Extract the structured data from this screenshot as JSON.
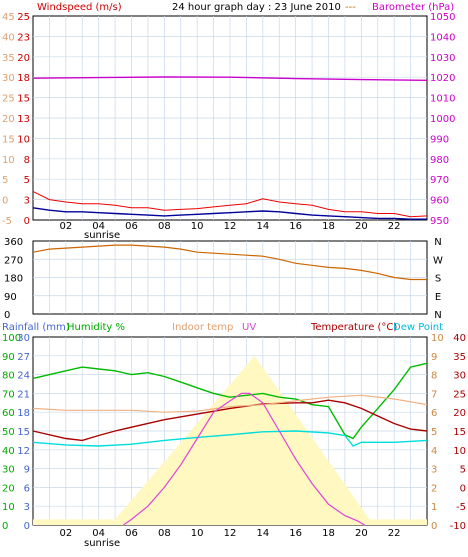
{
  "header": {
    "title": "24 hour graph day : 23 June 2010",
    "windspeed_label": "Windspeed (m/s)",
    "barometer_label": "Barometer (hPa)"
  },
  "labels": {
    "rainfall": "Rainfall (mm)",
    "humidity": "Humidity %",
    "indoor": "Indoor temp",
    "uv": "UV",
    "temperature": "Temperature (°C)",
    "dewpoint": "Dew Point",
    "sunrise": "sunrise"
  },
  "colors": {
    "wind_gust": "#ee0000",
    "wind_avg": "#000099",
    "barometer": "#cc00cc",
    "direction": "#cc6600",
    "humidity": "#00bb00",
    "temperature": "#aa0000",
    "dewpoint": "#00dddd",
    "indoor": "#f0b080",
    "uv": "#dd44dd",
    "solar": "#fff8c0",
    "grid": "#c8d8e8"
  },
  "chart_data": [
    {
      "type": "line",
      "x_ticks": [
        "02",
        "04",
        "06",
        "08",
        "10",
        "12",
        "14",
        "16",
        "18",
        "20",
        "22"
      ],
      "y_left_outer": [
        "45",
        "40",
        "35",
        "30",
        "25",
        "20",
        "15",
        "10",
        "5",
        "0",
        "-5"
      ],
      "y_left_inner": [
        "25",
        "23",
        "20",
        "18",
        "15",
        "13",
        "10",
        "8",
        "5",
        "3",
        "0"
      ],
      "y_right": [
        "1050",
        "1040",
        "1030",
        "1020",
        "1010",
        "1000",
        "990",
        "980",
        "970",
        "960",
        "950"
      ],
      "series": [
        {
          "key": "gust",
          "x": [
            0,
            1,
            2,
            3,
            4,
            5,
            6,
            7,
            8,
            9,
            10,
            11,
            12,
            13,
            14,
            15,
            16,
            17,
            18,
            19,
            20,
            21,
            22,
            23,
            24
          ],
          "y": [
            3.5,
            2.5,
            2.2,
            2.0,
            2.0,
            1.8,
            1.5,
            1.5,
            1.2,
            1.3,
            1.4,
            1.6,
            1.8,
            2.0,
            2.6,
            2.2,
            2.0,
            1.8,
            1.3,
            1.0,
            1.0,
            0.8,
            0.8,
            0.4,
            0.5
          ]
        },
        {
          "key": "avg",
          "x": [
            0,
            1,
            2,
            3,
            4,
            5,
            6,
            7,
            8,
            9,
            10,
            11,
            12,
            13,
            14,
            15,
            16,
            17,
            18,
            19,
            20,
            21,
            22,
            23,
            24
          ],
          "y": [
            1.5,
            1.2,
            1.0,
            1.0,
            0.9,
            0.8,
            0.7,
            0.6,
            0.5,
            0.6,
            0.7,
            0.8,
            0.9,
            1.0,
            1.1,
            1.0,
            0.8,
            0.6,
            0.5,
            0.4,
            0.3,
            0.2,
            0.2,
            0.1,
            0.1
          ]
        },
        {
          "key": "baro",
          "x": [
            0,
            4,
            8,
            12,
            16,
            20,
            24
          ],
          "y": [
            1019.5,
            1019.8,
            1020.1,
            1020.0,
            1019.3,
            1018.8,
            1018.5
          ]
        }
      ],
      "ylim_inner": [
        0,
        25
      ],
      "ylim_right": [
        950,
        1050
      ]
    },
    {
      "type": "line",
      "y_left": [
        "360",
        "270",
        "180",
        "90",
        "0"
      ],
      "y_right": [
        "N",
        "W",
        "S",
        "E",
        "N"
      ],
      "x": [
        0,
        1,
        2,
        3,
        4,
        5,
        6,
        7,
        8,
        9,
        10,
        11,
        12,
        13,
        14,
        15,
        16,
        17,
        18,
        19,
        20,
        21,
        22,
        23,
        24
      ],
      "y": [
        305,
        320,
        325,
        330,
        335,
        340,
        340,
        335,
        330,
        320,
        305,
        300,
        295,
        290,
        285,
        270,
        250,
        240,
        230,
        225,
        215,
        200,
        180,
        170,
        170
      ],
      "ylim": [
        0,
        360
      ]
    },
    {
      "type": "line",
      "y_left_outer": [
        "100",
        "90",
        "80",
        "70",
        "60",
        "50",
        "40",
        "30",
        "20",
        "10",
        "0"
      ],
      "y_left_inner": [
        "30",
        "27",
        "24",
        "21",
        "18",
        "15",
        "12",
        "9",
        "6",
        "3",
        "0"
      ],
      "y_right_outer": [
        "40",
        "35",
        "30",
        "25",
        "20",
        "15",
        "10",
        "5",
        "0",
        "-5",
        "-10"
      ],
      "y_right_inner": [
        "10",
        "9",
        "8",
        "7",
        "6",
        "5",
        "4",
        "3",
        "2",
        "1",
        "0"
      ],
      "series": [
        {
          "key": "humidity",
          "x": [
            0,
            2,
            3,
            4,
            5,
            6,
            7,
            8,
            9,
            10,
            11,
            12,
            13,
            14,
            15,
            16,
            17,
            18,
            19,
            19.5,
            20,
            21,
            22,
            23,
            24
          ],
          "y": [
            78,
            82,
            84,
            83,
            82,
            80,
            81,
            79,
            76,
            73,
            70,
            68,
            69,
            70,
            68,
            67,
            64,
            63,
            48,
            46,
            52,
            62,
            72,
            84,
            86
          ]
        },
        {
          "key": "temperature",
          "x": [
            0,
            2,
            3,
            4,
            5,
            6,
            8,
            10,
            12,
            14,
            16,
            17,
            18,
            19,
            20,
            21,
            22,
            23,
            24
          ],
          "y": [
            15.0,
            13.0,
            12.5,
            13.8,
            15.0,
            16.0,
            18.0,
            19.5,
            21.0,
            22.2,
            22.5,
            22.5,
            23.2,
            22.5,
            21.0,
            19.0,
            17.0,
            15.5,
            15.0
          ]
        },
        {
          "key": "dewpoint",
          "x": [
            0,
            2,
            4,
            6,
            8,
            10,
            12,
            14,
            16,
            18,
            19,
            19.5,
            20,
            22,
            24
          ],
          "y": [
            12.0,
            11.3,
            11.0,
            11.5,
            12.5,
            13.3,
            14.0,
            14.8,
            15.0,
            14.5,
            13.8,
            11.0,
            12.0,
            12.0,
            12.5
          ]
        },
        {
          "key": "indoor",
          "x": [
            0,
            2,
            4,
            6,
            8,
            10,
            12,
            14,
            16,
            18,
            20,
            22,
            24
          ],
          "y": [
            21.0,
            20.5,
            20.5,
            20.5,
            20.0,
            20.3,
            21.5,
            22.0,
            23.0,
            24.0,
            24.5,
            23.5,
            22.0
          ]
        },
        {
          "key": "uv",
          "x": [
            5.5,
            6.0,
            7.0,
            8.0,
            9.0,
            10.0,
            11.0,
            12.0,
            12.7,
            13.2,
            14.0,
            15.0,
            16.0,
            17.0,
            18.0,
            19.0,
            19.8,
            20.2
          ],
          "y": [
            0,
            0.3,
            1.0,
            2.0,
            3.2,
            4.6,
            6.0,
            6.6,
            7.0,
            7.0,
            6.5,
            5.0,
            3.5,
            2.2,
            1.1,
            0.5,
            0.2,
            0
          ]
        },
        {
          "key": "solar",
          "x": [
            0,
            5.0,
            13.5,
            20.5,
            24
          ],
          "y": [
            0.3,
            0.3,
            9.0,
            0.3,
            0.3
          ]
        }
      ],
      "ylim_humidity": [
        0,
        100
      ],
      "ylim_temperature": [
        -10,
        40
      ],
      "ylim_uv": [
        0,
        10
      ]
    }
  ]
}
